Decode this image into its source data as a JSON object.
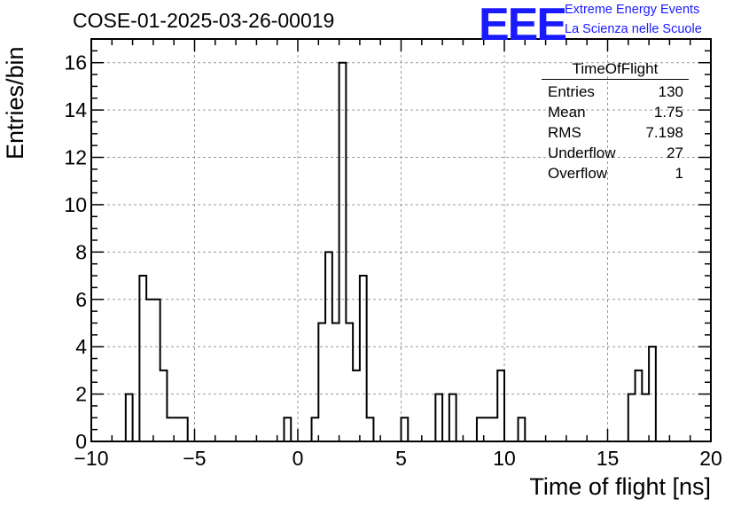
{
  "title": "COSE-01-2025-03-26-00019",
  "logo": {
    "mark": "EEE",
    "line1": "Extreme Energy Events",
    "line2": "La Scienza nelle Scuole",
    "color": "#1a1aff"
  },
  "stats_box": {
    "title": "TimeOfFlight",
    "rows": [
      {
        "label": "Entries",
        "value": "130"
      },
      {
        "label": "Mean",
        "value": "1.75"
      },
      {
        "label": "RMS",
        "value": "7.198"
      },
      {
        "label": "Underflow",
        "value": "27"
      },
      {
        "label": "Overflow",
        "value": "1"
      }
    ]
  },
  "chart_data": {
    "type": "histogram",
    "xlabel": "Time of flight [ns]",
    "ylabel": "Entries/bin",
    "xlim": [
      -10,
      20
    ],
    "ylim": [
      0,
      17
    ],
    "x_ticks": [
      -10,
      -5,
      0,
      5,
      10,
      15,
      20
    ],
    "y_ticks": [
      0,
      2,
      4,
      6,
      8,
      10,
      12,
      14,
      16
    ],
    "grid": true,
    "bin_width": 0.3333,
    "bins": [
      {
        "x0": -8.3333,
        "x1": -8.0,
        "count": 2
      },
      {
        "x0": -7.6667,
        "x1": -7.3333,
        "count": 7
      },
      {
        "x0": -7.3333,
        "x1": -7.0,
        "count": 6
      },
      {
        "x0": -7.0,
        "x1": -6.6667,
        "count": 6
      },
      {
        "x0": -6.6667,
        "x1": -6.3333,
        "count": 3
      },
      {
        "x0": -6.3333,
        "x1": -6.0,
        "count": 1
      },
      {
        "x0": -6.0,
        "x1": -5.6667,
        "count": 1
      },
      {
        "x0": -5.6667,
        "x1": -5.3333,
        "count": 1
      },
      {
        "x0": -0.6667,
        "x1": -0.3333,
        "count": 1
      },
      {
        "x0": 0.6667,
        "x1": 1.0,
        "count": 1
      },
      {
        "x0": 1.0,
        "x1": 1.3333,
        "count": 5
      },
      {
        "x0": 1.3333,
        "x1": 1.6667,
        "count": 8
      },
      {
        "x0": 1.6667,
        "x1": 2.0,
        "count": 5
      },
      {
        "x0": 2.0,
        "x1": 2.3333,
        "count": 16
      },
      {
        "x0": 2.3333,
        "x1": 2.6667,
        "count": 5
      },
      {
        "x0": 2.6667,
        "x1": 3.0,
        "count": 3
      },
      {
        "x0": 3.0,
        "x1": 3.3333,
        "count": 7
      },
      {
        "x0": 3.3333,
        "x1": 3.6667,
        "count": 1
      },
      {
        "x0": 5.0,
        "x1": 5.3333,
        "count": 1
      },
      {
        "x0": 6.6667,
        "x1": 7.0,
        "count": 2
      },
      {
        "x0": 7.3333,
        "x1": 7.6667,
        "count": 2
      },
      {
        "x0": 8.6667,
        "x1": 9.0,
        "count": 1
      },
      {
        "x0": 9.0,
        "x1": 9.3333,
        "count": 1
      },
      {
        "x0": 9.3333,
        "x1": 9.6667,
        "count": 1
      },
      {
        "x0": 9.6667,
        "x1": 10.0,
        "count": 3
      },
      {
        "x0": 10.6667,
        "x1": 11.0,
        "count": 1
      },
      {
        "x0": 16.0,
        "x1": 16.3333,
        "count": 2
      },
      {
        "x0": 16.3333,
        "x1": 16.6667,
        "count": 3
      },
      {
        "x0": 16.6667,
        "x1": 17.0,
        "count": 2
      },
      {
        "x0": 17.0,
        "x1": 17.3333,
        "count": 4
      }
    ]
  }
}
